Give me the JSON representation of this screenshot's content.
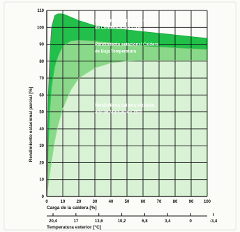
{
  "chart_data": {
    "type": "area",
    "title": "",
    "ylabel": "Rendimiento estacional parcial [%]",
    "xlabel": "Carga de la caldera [%]",
    "x2label": "Temperatura exterior [°C]",
    "ylim": [
      0,
      110
    ],
    "xlim": [
      0,
      100
    ],
    "y_ticks": [
      0,
      10,
      20,
      30,
      40,
      50,
      60,
      70,
      80,
      90,
      100,
      110
    ],
    "x_ticks": [
      0,
      10,
      20,
      30,
      40,
      50,
      60,
      70,
      80,
      90,
      100
    ],
    "x2_ticks": [
      {
        "x": 0,
        "label": "20,4"
      },
      {
        "x": 15,
        "label": "17"
      },
      {
        "x": 30,
        "label": "13,6"
      },
      {
        "x": 45,
        "label": "10,2"
      },
      {
        "x": 60,
        "label": "6,8"
      },
      {
        "x": 75,
        "label": "3,4"
      },
      {
        "x": 90,
        "label": "0"
      },
      {
        "x": 105,
        "label": "-3,4"
      }
    ],
    "grid": true,
    "series": [
      {
        "name": "Rendimiento estacional Caldera de Condensación a gas",
        "color": "#22c04a",
        "x": [
          0,
          1,
          2,
          3,
          5,
          7,
          10,
          15,
          20,
          30,
          40,
          50,
          60,
          70,
          80,
          90,
          100
        ],
        "y": [
          0,
          60,
          85,
          100,
          107,
          108,
          108,
          106,
          104,
          101,
          99.5,
          98.5,
          97.5,
          96.5,
          95.5,
          94.5,
          93.5
        ]
      },
      {
        "name": "Rendimiento estacional Caldera de Baja Temperatura",
        "color": "#8ad88a",
        "x": [
          0,
          1,
          2,
          3,
          5,
          7,
          10,
          15,
          20,
          30,
          40,
          50,
          60,
          70,
          80,
          90,
          100
        ],
        "y": [
          0,
          30,
          52,
          65,
          77,
          83,
          89,
          92,
          92.5,
          92,
          91,
          90,
          89,
          88.5,
          88,
          87.5,
          87
        ]
      },
      {
        "name": "Rendimiento caldera estándar, año de fabricación 1975",
        "color": "#d9f2d6",
        "x": [
          0,
          1,
          2,
          3,
          5,
          7,
          10,
          15,
          20,
          30,
          40,
          50,
          60,
          70,
          80,
          90,
          100
        ],
        "y": [
          0,
          7,
          14,
          21,
          33,
          42,
          52,
          63,
          70,
          76,
          79,
          80,
          80.5,
          80.5,
          80.5,
          80.5,
          80.5
        ]
      }
    ],
    "annotations": [
      {
        "text": "Rendimiento estacional Caldera",
        "x": 30,
        "y": 104
      },
      {
        "text": "de Condensación a gas",
        "x": 30,
        "y": 100
      },
      {
        "text": "Rendimiento estacional Caldera",
        "x": 30,
        "y": 90
      },
      {
        "text": "de Baja Temperatura",
        "x": 30,
        "y": 86
      },
      {
        "text": "Rendimiento caldera estándar,",
        "x": 30,
        "y": 54
      },
      {
        "text": "año de fabricación 1975",
        "x": 30,
        "y": 50
      }
    ]
  }
}
